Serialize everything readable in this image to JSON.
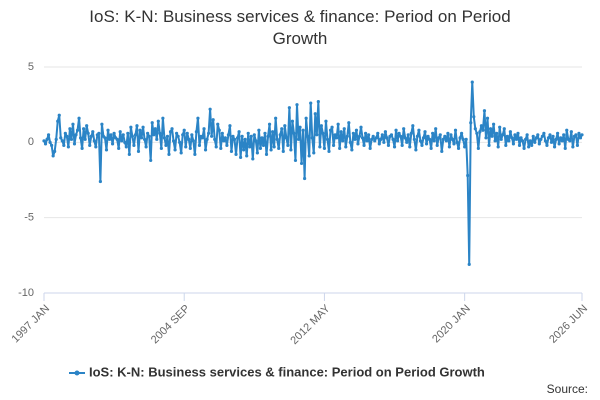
{
  "chart_data": {
    "type": "line",
    "title": "IoS: K-N: Business services & finance: Period on Period Growth",
    "source": "Source:",
    "categories": [
      "1997 JAN",
      null,
      null,
      null,
      null,
      null,
      null,
      null,
      null,
      null,
      null,
      null,
      null,
      null,
      null,
      null,
      null,
      null,
      null,
      null,
      null,
      null,
      null,
      null,
      null,
      null,
      null,
      null,
      null,
      null,
      null,
      null,
      null,
      null,
      null,
      null,
      null,
      null,
      null,
      null,
      null,
      null,
      null,
      null,
      null,
      null,
      null,
      null,
      null,
      null,
      null,
      null,
      null,
      null,
      null,
      null,
      null,
      null,
      null,
      null,
      null,
      null,
      null,
      null,
      null,
      null,
      null,
      null,
      null,
      null,
      null,
      null,
      null,
      null,
      null,
      null,
      null,
      null,
      null,
      null,
      null,
      null,
      null,
      null,
      null,
      null,
      null,
      null,
      null,
      null,
      null,
      null,
      "2004 SEP",
      null,
      null,
      null,
      null,
      null,
      null,
      null,
      null,
      null,
      null,
      null,
      null,
      null,
      null,
      null,
      null,
      null,
      null,
      null,
      null,
      null,
      null,
      null,
      null,
      null,
      null,
      null,
      null,
      null,
      null,
      null,
      null,
      null,
      null,
      null,
      null,
      null,
      null,
      null,
      null,
      null,
      null,
      null,
      null,
      null,
      null,
      null,
      null,
      null,
      null,
      null,
      null,
      null,
      null,
      null,
      null,
      null,
      null,
      null,
      null,
      null,
      null,
      null,
      null,
      null,
      null,
      null,
      null,
      null,
      null,
      null,
      null,
      null,
      null,
      null,
      null,
      null,
      null,
      null,
      null,
      null,
      null,
      null,
      null,
      null,
      null,
      null,
      null,
      null,
      null,
      null,
      "2012 MAY",
      null,
      null,
      null,
      null,
      null,
      null,
      null,
      null,
      null,
      null,
      null,
      null,
      null,
      null,
      null,
      null,
      null,
      null,
      null,
      null,
      null,
      null,
      null,
      null,
      null,
      null,
      null,
      null,
      null,
      null,
      null,
      null,
      null,
      null,
      null,
      null,
      null,
      null,
      null,
      null,
      null,
      null,
      null,
      null,
      null,
      null,
      null,
      null,
      null,
      null,
      null,
      null,
      null,
      null,
      null,
      null,
      null,
      null,
      null,
      null,
      null,
      null,
      null,
      null,
      null,
      null,
      null,
      null,
      null,
      null,
      null,
      null,
      null,
      null,
      null,
      null,
      null,
      null,
      null,
      null,
      null,
      null,
      null,
      null,
      null,
      null,
      null,
      null,
      null,
      null,
      null,
      "2020 JAN",
      null,
      null,
      null,
      null,
      null,
      null,
      null,
      null,
      null,
      null,
      null,
      null,
      null,
      null,
      null,
      null,
      null,
      null,
      null,
      null,
      null,
      null,
      null,
      null,
      null,
      null,
      null,
      null,
      null,
      null,
      null,
      null,
      null,
      null,
      null,
      null,
      null,
      null,
      null,
      null,
      null,
      null,
      null,
      null,
      null,
      null,
      null,
      null,
      null,
      null,
      null,
      null,
      null,
      null,
      null,
      null,
      null,
      null,
      null,
      null,
      null,
      null,
      null,
      null,
      null,
      null,
      null,
      null,
      null,
      null,
      null,
      null,
      null,
      null,
      null,
      null,
      "2026 JUN"
    ],
    "series": [
      {
        "name": "IoS: K-N: Business services & finance: Period on Period Growth",
        "color": "#2b84c6",
        "values": [
          0.1,
          -0.1,
          0.2,
          0.5,
          0.0,
          -0.2,
          -0.9,
          -0.6,
          0.2,
          1.4,
          1.8,
          0.3,
          0.1,
          -0.2,
          0.6,
          0.4,
          -0.3,
          0.9,
          0.2,
          1.2,
          -0.1,
          0.5,
          0.8,
          1.6,
          0.3,
          -0.4,
          0.9,
          0.2,
          1.1,
          0.6,
          -0.2,
          0.4,
          0.7,
          0.1,
          -0.3,
          0.5,
          0.6,
          -2.6,
          1.2,
          0.4,
          0.3,
          -0.5,
          0.8,
          0.2,
          0.5,
          -0.1,
          0.6,
          0.3,
          0.2,
          -0.4,
          0.7,
          0.1,
          0.5,
          0.0,
          -0.3,
          0.6,
          -0.8,
          1.0,
          0.4,
          -0.2,
          0.5,
          1.1,
          -0.6,
          0.8,
          0.3,
          1.0,
          0.2,
          -0.3,
          0.6,
          0.4,
          -1.2,
          1.3,
          0.5,
          0.9,
          0.2,
          1.4,
          0.6,
          -0.4,
          1.6,
          0.3,
          -0.2,
          0.4,
          -0.8,
          0.7,
          0.9,
          0.1,
          -0.5,
          0.6,
          0.4,
          0.0,
          -0.7,
          0.5,
          0.8,
          -0.3,
          0.6,
          0.2,
          -0.4,
          0.5,
          0.1,
          -0.8,
          0.7,
          1.6,
          -0.2,
          0.4,
          0.3,
          0.9,
          -0.5,
          0.2,
          0.6,
          2.2,
          0.4,
          1.5,
          0.2,
          -0.3,
          1.2,
          0.8,
          -0.4,
          0.6,
          0.1,
          0.3,
          -0.2,
          0.5,
          1.1,
          -0.6,
          0.4,
          0.2,
          -0.8,
          0.3,
          0.7,
          -1.0,
          0.4,
          -0.5,
          0.2,
          -0.9,
          0.6,
          -0.3,
          0.4,
          -1.1,
          0.5,
          0.1,
          -0.7,
          0.8,
          -0.4,
          0.3,
          -0.2,
          0.6,
          -0.8,
          0.4,
          1.2,
          -0.5,
          0.7,
          -0.3,
          1.6,
          0.2,
          -0.4,
          0.5,
          0.9,
          -0.6,
          1.1,
          0.3,
          -0.2,
          2.3,
          -0.5,
          1.4,
          0.6,
          -1.2,
          2.5,
          0.2,
          1.0,
          -1.4,
          0.8,
          -2.4,
          1.6,
          0.4,
          -0.9,
          2.6,
          0.3,
          -0.7,
          1.9,
          0.5,
          2.7,
          -0.3,
          1.1,
          0.6,
          -0.4,
          1.4,
          0.2,
          -0.6,
          0.8,
          1.0,
          -0.2,
          0.5,
          0.3,
          1.2,
          -0.4,
          0.7,
          0.1,
          0.9,
          -0.3,
          0.4,
          1.3,
          0.0,
          -0.5,
          0.6,
          0.2,
          0.8,
          -0.1,
          0.4,
          1.0,
          0.3,
          -0.2,
          0.6,
          0.1,
          0.5,
          -0.4,
          0.2,
          0.4,
          0.1,
          0.3,
          0.6,
          -0.1,
          0.2,
          0.5,
          0.0,
          0.7,
          0.3,
          -0.2,
          0.4,
          0.5,
          0.2,
          -0.3,
          0.8,
          0.1,
          0.6,
          0.4,
          -0.2,
          0.9,
          0.3,
          0.0,
          0.5,
          -0.3,
          0.6,
          1.1,
          0.2,
          -0.5,
          0.4,
          0.8,
          0.1,
          -0.2,
          0.3,
          0.7,
          -0.1,
          0.4,
          0.2,
          -0.4,
          0.6,
          0.1,
          0.9,
          -0.2,
          0.3,
          0.5,
          -0.6,
          0.2,
          0.4,
          0.1,
          0.6,
          -0.3,
          0.5,
          0.2,
          -0.1,
          0.8,
          0.0,
          -0.4,
          0.3,
          0.6,
          0.2,
          -0.3,
          0.2,
          -2.2,
          -8.1,
          1.3,
          4.0,
          1.7,
          0.9,
          0.6,
          -0.4,
          0.7,
          1.1,
          0.8,
          2.1,
          0.3,
          1.6,
          -0.2,
          0.9,
          0.4,
          1.2,
          0.1,
          0.6,
          -0.3,
          1.0,
          0.2,
          0.5,
          0.9,
          -0.2,
          0.4,
          0.1,
          0.7,
          0.3,
          -0.1,
          0.5,
          0.2,
          0.6,
          -0.2,
          0.3,
          0.1,
          -0.4,
          0.2,
          0.5,
          -0.3,
          0.1,
          -0.2,
          0.4,
          0.0,
          0.3,
          0.5,
          -0.1,
          0.2,
          0.4,
          0.6,
          0.1,
          -0.2,
          0.3,
          0.5,
          0.0,
          0.4,
          -0.3,
          0.2,
          0.6,
          -0.1,
          0.3,
          0.1,
          0.5,
          -0.4,
          0.8,
          0.2,
          0.1,
          0.7,
          -0.3,
          0.4,
          0.5,
          -0.2,
          0.6,
          0.3,
          0.5
        ]
      }
    ],
    "ylim": [
      -10,
      5
    ],
    "yticks": [
      5,
      0,
      -5,
      -10
    ],
    "grid": true,
    "markers": true,
    "legend": "bottom"
  }
}
